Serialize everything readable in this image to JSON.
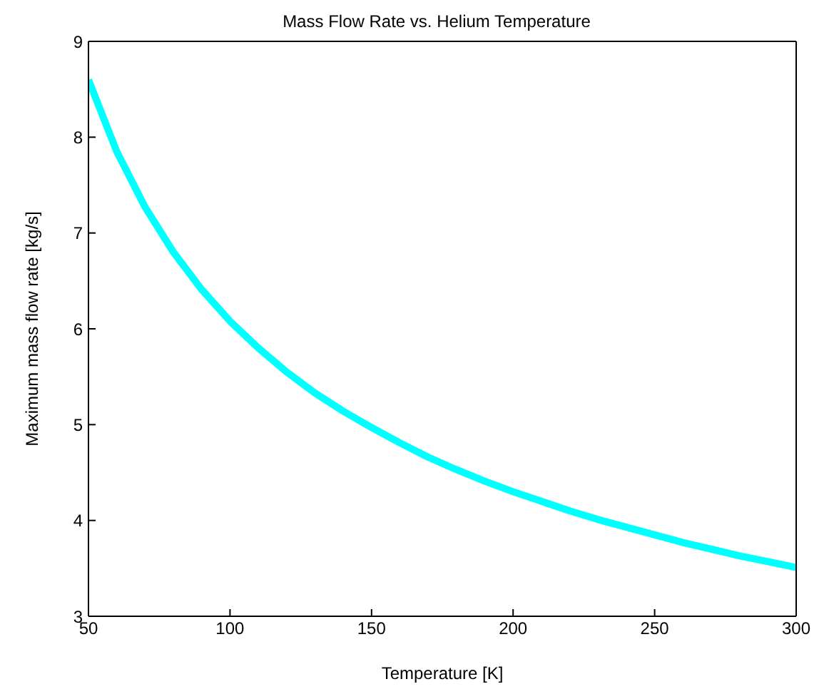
{
  "chart_data": {
    "type": "line",
    "title": "Mass Flow Rate vs. Helium Temperature",
    "xlabel": "Temperature [K]",
    "ylabel": "Maximum mass flow rate [kg/s]",
    "x": [
      50,
      60,
      70,
      80,
      90,
      100,
      110,
      120,
      130,
      140,
      150,
      160,
      170,
      180,
      190,
      200,
      210,
      220,
      230,
      240,
      250,
      260,
      270,
      280,
      290,
      300
    ],
    "series": [
      {
        "color": "#00ffff",
        "values": [
          8.6,
          7.85,
          7.27,
          6.8,
          6.41,
          6.08,
          5.8,
          5.55,
          5.33,
          5.14,
          4.97,
          4.81,
          4.66,
          4.53,
          4.41,
          4.3,
          4.2,
          4.1,
          4.01,
          3.93,
          3.85,
          3.77,
          3.7,
          3.63,
          3.57,
          3.51
        ]
      }
    ],
    "xlim": [
      50,
      300
    ],
    "xticks": [
      50,
      100,
      150,
      200,
      250,
      300
    ],
    "ylim": [
      3,
      9
    ],
    "yticks": [
      3,
      4,
      5,
      6,
      7,
      8,
      9
    ],
    "grid": false,
    "legend": false,
    "marker": "none",
    "line_style": "solid"
  }
}
